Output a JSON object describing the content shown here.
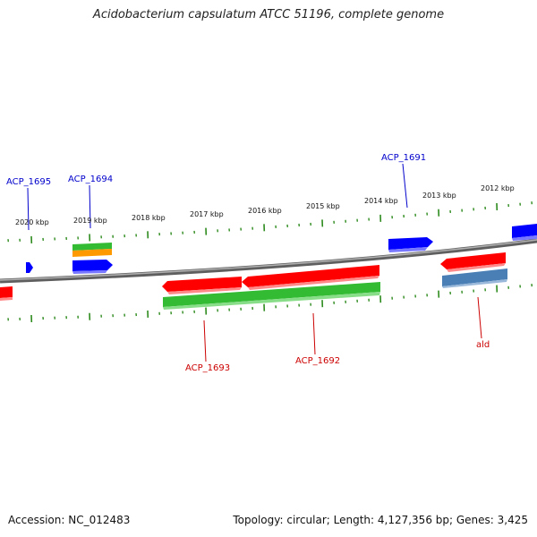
{
  "title": "Acidobacterium capsulatum ATCC 51196, complete genome",
  "accession": "Accession: NC_012483",
  "summary": "Topology: circular; Length: 4,127,356 bp; Genes: 3,425",
  "colors": {
    "backbone": "#7f7f7f",
    "tick": "#2e8b1e",
    "label_forward": "#0000cc",
    "label_reverse": "#cc0000",
    "gene_blue": "#0000ff",
    "gene_red": "#ff0000",
    "gene_green": "#33bb33",
    "gene_orange": "#ff9900",
    "gene_steel": "#4a7fb5"
  },
  "ticks": [
    "2020 kbp",
    "2019 kbp",
    "2018 kbp",
    "2017 kbp",
    "2016 kbp",
    "2015 kbp",
    "2014 kbp",
    "2013 kbp",
    "2012 kbp"
  ],
  "genes": [
    {
      "label": "ACP_1695",
      "strand": "forward"
    },
    {
      "label": "ACP_1694",
      "strand": "forward"
    },
    {
      "label": "ACP_1691",
      "strand": "forward"
    },
    {
      "label": "ACP_1693",
      "strand": "reverse"
    },
    {
      "label": "ACP_1692",
      "strand": "reverse"
    },
    {
      "label": "ald",
      "strand": "reverse"
    }
  ]
}
